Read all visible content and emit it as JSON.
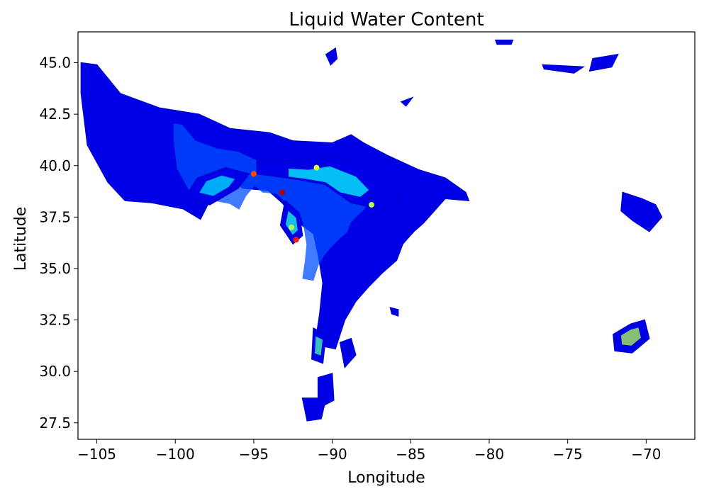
{
  "chart_data": {
    "type": "heatmap",
    "title": "Liquid Water Content",
    "xlabel": "Longitude",
    "ylabel": "Latitude",
    "xlim": [
      -106.2,
      -66.9
    ],
    "ylim": [
      26.7,
      46.5
    ],
    "xticks": [
      -105,
      -100,
      -95,
      -90,
      -85,
      -80,
      -75,
      -70
    ],
    "xtick_labels": [
      "−105",
      "−100",
      "−95",
      "−90",
      "−85",
      "−80",
      "−75",
      "−70"
    ],
    "yticks": [
      27.5,
      30.0,
      32.5,
      35.0,
      37.5,
      40.0,
      42.5,
      45.0
    ],
    "ytick_labels": [
      "27.5",
      "30.0",
      "32.5",
      "35.0",
      "37.5",
      "40.0",
      "42.5",
      "45.0"
    ],
    "grid": false,
    "colormap": "jet",
    "regions": [
      {
        "name": "main",
        "lonlat": [
          [
            -106,
            45
          ],
          [
            -105,
            44.9
          ],
          [
            -103.5,
            43.5
          ],
          [
            -101,
            42.8
          ],
          [
            -98.5,
            42.5
          ],
          [
            -96.5,
            41.8
          ],
          [
            -94,
            41.6
          ],
          [
            -92.5,
            41.2
          ],
          [
            -90,
            41.1
          ],
          [
            -88.8,
            41.5
          ],
          [
            -88,
            41.1
          ],
          [
            -86.5,
            40.5
          ],
          [
            -84.5,
            39.8
          ],
          [
            -82.8,
            39.4
          ],
          [
            -81.5,
            38.7
          ],
          [
            -81.3,
            38.3
          ],
          [
            -82.8,
            38.4
          ],
          [
            -84.2,
            37.2
          ],
          [
            -84.8,
            36.8
          ],
          [
            -85.5,
            36.2
          ],
          [
            -85.9,
            35.4
          ],
          [
            -86.8,
            34.8
          ],
          [
            -87.7,
            34.1
          ],
          [
            -88.5,
            33.4
          ],
          [
            -89.2,
            32.5
          ],
          [
            -89.8,
            31.1
          ],
          [
            -91.1,
            31.3
          ],
          [
            -90.8,
            32.8
          ],
          [
            -90.6,
            34.3
          ],
          [
            -90.9,
            35.7
          ],
          [
            -91.2,
            36.7
          ],
          [
            -92.1,
            37.2
          ],
          [
            -93.2,
            38.2
          ],
          [
            -94.1,
            38.8
          ],
          [
            -95.7,
            38.9
          ],
          [
            -96.6,
            39.5
          ],
          [
            -97.6,
            38.6
          ],
          [
            -98.4,
            37.4
          ],
          [
            -99.5,
            37.9
          ],
          [
            -101.5,
            38.2
          ],
          [
            -103.2,
            38.3
          ],
          [
            -104.3,
            39.2
          ],
          [
            -105.6,
            41
          ],
          [
            -106,
            43.5
          ]
        ],
        "max_level": 0.2
      },
      {
        "name": "band-east",
        "lonlat": [
          [
            -94.8,
            40.3
          ],
          [
            -92.5,
            40.2
          ],
          [
            -90,
            40.5
          ],
          [
            -87,
            39.6
          ],
          [
            -85.5,
            38.4
          ],
          [
            -86.5,
            37.8
          ],
          [
            -88.8,
            38.2
          ],
          [
            -90.5,
            39.1
          ],
          [
            -92.8,
            39.4
          ],
          [
            -94.8,
            39.6
          ]
        ],
        "max_level": 0.38
      },
      {
        "name": "band-west",
        "lonlat": [
          [
            -98.6,
            39.4
          ],
          [
            -96.8,
            39.9
          ],
          [
            -95.3,
            39.6
          ],
          [
            -96,
            38.9
          ],
          [
            -97.8,
            38.1
          ],
          [
            -99.4,
            38.4
          ]
        ],
        "max_level": 0.35
      },
      {
        "name": "tail",
        "lonlat": [
          [
            -93,
            38.3
          ],
          [
            -92.1,
            37.7
          ],
          [
            -91.9,
            36.6
          ],
          [
            -92.5,
            36.2
          ],
          [
            -93.3,
            37.1
          ]
        ],
        "max_level": 0.4
      },
      {
        "name": "nc-island-1",
        "lonlat": [
          [
            -90.4,
            45.4
          ],
          [
            -89.8,
            45.7
          ],
          [
            -89.7,
            45.2
          ],
          [
            -90.1,
            44.9
          ]
        ],
        "max_level": 0.15
      },
      {
        "name": "nc-island-2",
        "lonlat": [
          [
            -85.6,
            43.1
          ],
          [
            -84.9,
            43.3
          ],
          [
            -85.3,
            42.9
          ]
        ],
        "max_level": 0.15
      },
      {
        "name": "northeast-1",
        "lonlat": [
          [
            -76.6,
            44.9
          ],
          [
            -74,
            44.8
          ],
          [
            -74.6,
            44.5
          ],
          [
            -76.5,
            44.7
          ]
        ],
        "max_level": 0.15
      },
      {
        "name": "northeast-2",
        "lonlat": [
          [
            -73.4,
            45.2
          ],
          [
            -71.8,
            45.4
          ],
          [
            -72.2,
            44.8
          ],
          [
            -73.6,
            44.6
          ]
        ],
        "max_level": 0.15
      },
      {
        "name": "northeast-3",
        "lonlat": [
          [
            -79.6,
            46.1
          ],
          [
            -78.5,
            46.1
          ],
          [
            -78.6,
            45.9
          ],
          [
            -79.5,
            45.9
          ]
        ],
        "max_level": 0.15
      },
      {
        "name": "maine",
        "lonlat": [
          [
            -71.5,
            38.7
          ],
          [
            -70.3,
            38.4
          ],
          [
            -69.4,
            38.1
          ],
          [
            -69,
            37.5
          ],
          [
            -69.8,
            36.8
          ],
          [
            -70.8,
            37.3
          ],
          [
            -71.6,
            37.8
          ]
        ],
        "max_level": 0.15
      },
      {
        "name": "atlantic",
        "lonlat": [
          [
            -72.1,
            31.8
          ],
          [
            -71,
            32.3
          ],
          [
            -70.1,
            32.5
          ],
          [
            -69.8,
            31.6
          ],
          [
            -70.9,
            30.9
          ],
          [
            -72,
            31
          ]
        ],
        "max_level": 0.55
      },
      {
        "name": "gulf-1",
        "lonlat": [
          [
            -91.2,
            32.1
          ],
          [
            -90.4,
            31.8
          ],
          [
            -90.6,
            30.4
          ],
          [
            -91.3,
            30.6
          ]
        ],
        "max_level": 0.45
      },
      {
        "name": "gulf-2",
        "lonlat": [
          [
            -90.9,
            29.7
          ],
          [
            -90,
            29.9
          ],
          [
            -89.9,
            28.6
          ],
          [
            -90.9,
            28.2
          ]
        ],
        "max_level": 0.15
      },
      {
        "name": "gulf-3",
        "lonlat": [
          [
            -91.9,
            28.7
          ],
          [
            -90.4,
            28.7
          ],
          [
            -90.7,
            27.7
          ],
          [
            -91.6,
            27.6
          ]
        ],
        "max_level": 0.15
      },
      {
        "name": "gulf-4",
        "lonlat": [
          [
            -89.5,
            31.4
          ],
          [
            -88.8,
            31.6
          ],
          [
            -88.5,
            30.8
          ],
          [
            -89.2,
            30.2
          ]
        ],
        "max_level": 0.15
      },
      {
        "name": "southeast",
        "lonlat": [
          [
            -86.3,
            33.1
          ],
          [
            -85.8,
            33
          ],
          [
            -85.8,
            32.7
          ],
          [
            -86.2,
            32.8
          ]
        ],
        "max_level": 0.15
      }
    ],
    "hotspots": [
      {
        "lon": -95,
        "lat": 39.6,
        "level": 0.8
      },
      {
        "lon": -93.2,
        "lat": 38.7,
        "level": 0.95
      },
      {
        "lon": -92.3,
        "lat": 36.4,
        "level": 0.85
      },
      {
        "lon": -92.6,
        "lat": 37,
        "level": 0.55
      },
      {
        "lon": -91,
        "lat": 39.9,
        "level": 0.6
      },
      {
        "lon": -87.5,
        "lat": 38.1,
        "level": 0.55
      }
    ]
  }
}
